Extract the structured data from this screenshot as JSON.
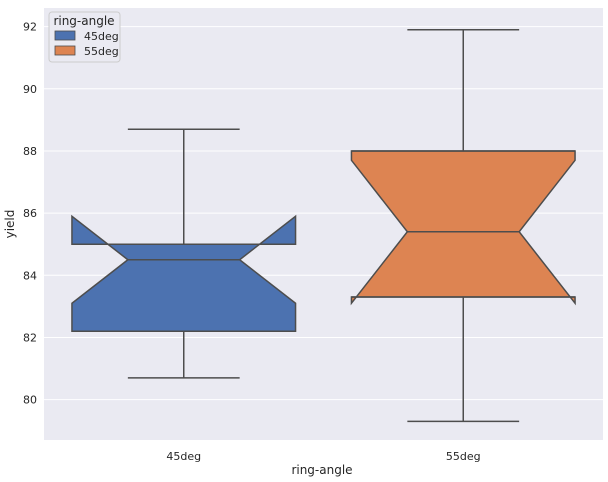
{
  "chart_data": {
    "type": "box",
    "style": "notched boxplot",
    "xlabel": "ring-angle",
    "ylabel": "yield",
    "categories": [
      "45deg",
      "55deg"
    ],
    "ylim": [
      78.7,
      92.6
    ],
    "yticks": [
      80,
      82,
      84,
      86,
      88,
      90,
      92
    ],
    "grid": true,
    "legend": {
      "title": "ring-angle",
      "position": "top-left",
      "entries": [
        "45deg",
        "55deg"
      ]
    },
    "boxes": [
      {
        "category": "45deg",
        "whisker_low": 80.7,
        "q1": 82.2,
        "median": 84.5,
        "q3": 85.0,
        "whisker_high": 88.7,
        "notch_low": 83.1,
        "notch_high": 85.9,
        "color": "#4c72b0"
      },
      {
        "category": "55deg",
        "whisker_low": 79.3,
        "q1": 83.3,
        "median": 85.4,
        "q3": 88.0,
        "whisker_high": 91.9,
        "notch_low": 83.1,
        "notch_high": 87.7,
        "color": "#dd8452"
      }
    ]
  },
  "colors": {
    "background": "#eaeaf2",
    "grid": "#ffffff",
    "line": "#4d4d4d"
  }
}
